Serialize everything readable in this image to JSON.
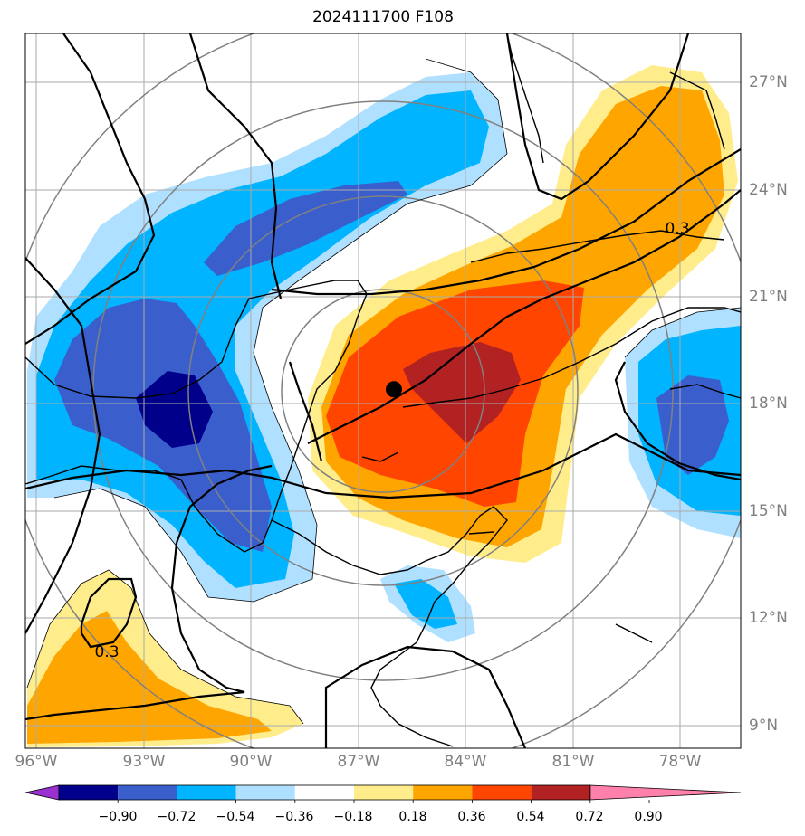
{
  "title": "2024111700 F108",
  "map": {
    "lat_labels": [
      "27°N",
      "24°N",
      "21°N",
      "18°N",
      "15°N",
      "12°N",
      "9°N"
    ],
    "lon_labels": [
      "96°W",
      "93°W",
      "90°W",
      "87°W",
      "84°W",
      "81°W",
      "78°W"
    ],
    "contour_labels": [
      "0.3",
      "0.3"
    ],
    "marker": {
      "name": "storm-center",
      "lon": -86.0,
      "lat": 18.4
    }
  },
  "colorbar": {
    "tick_labels": [
      "−0.90",
      "−0.72",
      "−0.54",
      "−0.36",
      "−0.18",
      "0.18",
      "0.36",
      "0.54",
      "0.72",
      "0.90"
    ],
    "colors": [
      "#9b30d0",
      "#00008b",
      "#3a5fcd",
      "#00b4ff",
      "#b0e0ff",
      "#ffffff",
      "#ffec8b",
      "#ffa500",
      "#ff4500",
      "#b22222",
      "#ff80ab"
    ]
  }
}
